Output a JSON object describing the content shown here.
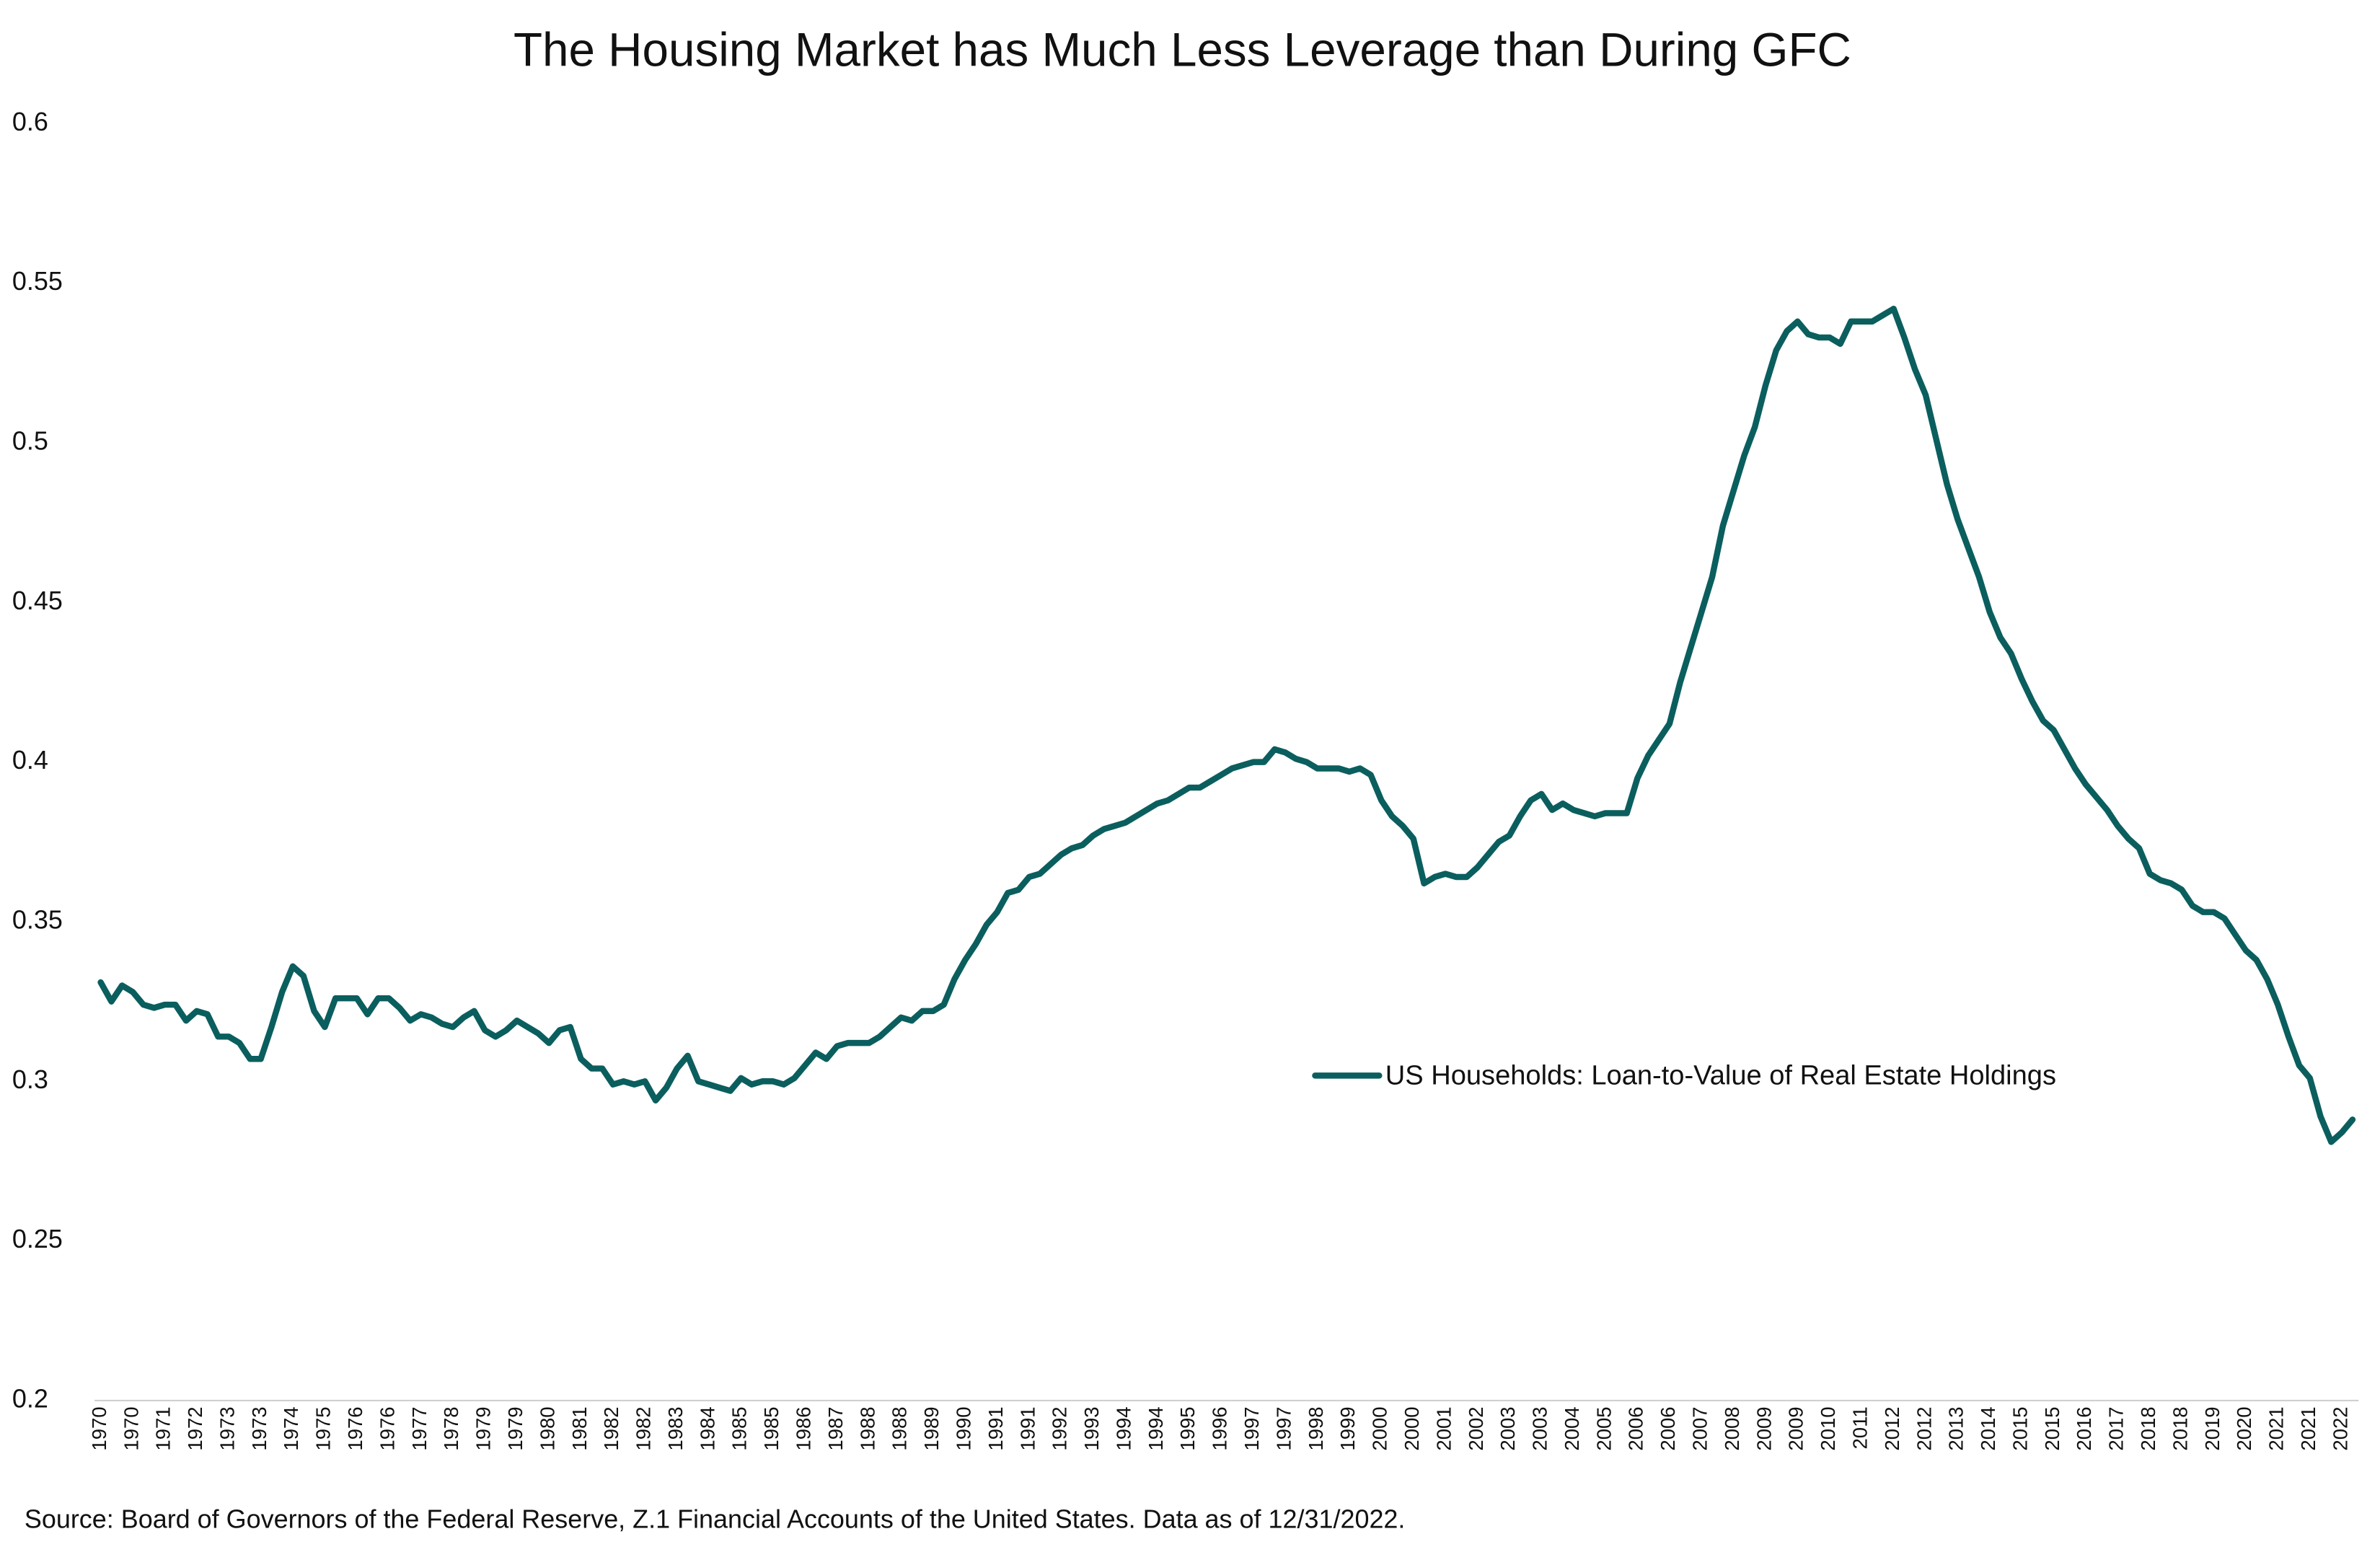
{
  "chart_data": {
    "type": "line",
    "title": "The Housing Market has Much Less Leverage than During GFC",
    "source": "Source: Board of Governors of the Federal Reserve, Z.1 Financial Accounts of the United States. Data as of 12/31/2022.",
    "categories": [
      "1970",
      null,
      null,
      "1970",
      null,
      null,
      "1971",
      null,
      null,
      "1972",
      null,
      null,
      "1973",
      null,
      null,
      "1973",
      null,
      null,
      "1974",
      null,
      null,
      "1975",
      null,
      null,
      "1976",
      null,
      null,
      "1976",
      null,
      null,
      "1977",
      null,
      null,
      "1978",
      null,
      null,
      "1979",
      null,
      null,
      "1979",
      null,
      null,
      "1980",
      null,
      null,
      "1981",
      null,
      null,
      "1982",
      null,
      null,
      "1982",
      null,
      null,
      "1983",
      null,
      null,
      "1984",
      null,
      null,
      "1985",
      null,
      null,
      "1985",
      null,
      null,
      "1986",
      null,
      null,
      "1987",
      null,
      null,
      "1988",
      null,
      null,
      "1988",
      null,
      null,
      "1989",
      null,
      null,
      "1990",
      null,
      null,
      "1991",
      null,
      null,
      "1991",
      null,
      null,
      "1992",
      null,
      null,
      "1993",
      null,
      null,
      "1994",
      null,
      null,
      "1994",
      null,
      null,
      "1995",
      null,
      null,
      "1996",
      null,
      null,
      "1997",
      null,
      null,
      "1997",
      null,
      null,
      "1998",
      null,
      null,
      "1999",
      null,
      null,
      "2000",
      null,
      null,
      "2000",
      null,
      null,
      "2001",
      null,
      null,
      "2002",
      null,
      null,
      "2003",
      null,
      null,
      "2003",
      null,
      null,
      "2004",
      null,
      null,
      "2005",
      null,
      null,
      "2006",
      null,
      null,
      "2006",
      null,
      null,
      "2007",
      null,
      null,
      "2008",
      null,
      null,
      "2009",
      null,
      null,
      "2009",
      null,
      null,
      "2010",
      null,
      null,
      "2011",
      null,
      null,
      "2012",
      null,
      null,
      "2012",
      null,
      null,
      "2013",
      null,
      null,
      "2014",
      null,
      null,
      "2015",
      null,
      null,
      "2015",
      null,
      null,
      "2016",
      null,
      null,
      "2017",
      null,
      null,
      "2018",
      null,
      null,
      "2018",
      null,
      null,
      "2019",
      null,
      null,
      "2020",
      null,
      null,
      "2021",
      null,
      null,
      "2021",
      null,
      null,
      "2022",
      null
    ],
    "series": [
      {
        "name": "US Households: Loan-to-Value of Real Estate Holdings",
        "color": "#0b5e5e",
        "values": [
          0.331,
          0.325,
          0.33,
          0.328,
          0.324,
          0.323,
          0.324,
          0.324,
          0.319,
          0.322,
          0.321,
          0.314,
          0.314,
          0.312,
          0.307,
          0.307,
          0.317,
          0.328,
          0.336,
          0.333,
          0.322,
          0.317,
          0.326,
          0.326,
          0.326,
          0.321,
          0.326,
          0.326,
          0.323,
          0.319,
          0.321,
          0.32,
          0.318,
          0.317,
          0.32,
          0.322,
          0.316,
          0.314,
          0.316,
          0.319,
          0.317,
          0.315,
          0.312,
          0.316,
          0.317,
          0.307,
          0.304,
          0.304,
          0.299,
          0.3,
          0.299,
          0.3,
          0.294,
          0.298,
          0.304,
          0.308,
          0.3,
          0.299,
          0.298,
          0.297,
          0.301,
          0.299,
          0.3,
          0.3,
          0.299,
          0.301,
          0.305,
          0.309,
          0.307,
          0.311,
          0.312,
          0.312,
          0.312,
          0.314,
          0.317,
          0.32,
          0.319,
          0.322,
          0.322,
          0.324,
          0.332,
          0.338,
          0.343,
          0.349,
          0.353,
          0.359,
          0.36,
          0.364,
          0.365,
          0.368,
          0.371,
          0.373,
          0.374,
          0.377,
          0.379,
          0.38,
          0.381,
          0.383,
          0.385,
          0.387,
          0.388,
          0.39,
          0.392,
          0.392,
          0.394,
          0.396,
          0.398,
          0.399,
          0.4,
          0.4,
          0.404,
          0.403,
          0.401,
          0.4,
          0.398,
          0.398,
          0.398,
          0.397,
          0.398,
          0.396,
          0.388,
          0.383,
          0.38,
          0.376,
          0.362,
          0.364,
          0.365,
          0.364,
          0.364,
          0.367,
          0.371,
          0.375,
          0.377,
          0.383,
          0.388,
          0.39,
          0.385,
          0.387,
          0.385,
          0.384,
          0.383,
          0.384,
          0.384,
          0.384,
          0.395,
          0.402,
          0.407,
          0.412,
          0.425,
          0.436,
          0.447,
          0.458,
          0.474,
          0.485,
          0.496,
          0.505,
          0.518,
          0.529,
          0.535,
          0.538,
          0.534,
          0.533,
          0.533,
          0.531,
          0.538,
          0.538,
          0.538,
          0.54,
          0.542,
          0.533,
          0.523,
          0.515,
          0.501,
          0.487,
          0.476,
          0.467,
          0.458,
          0.447,
          0.439,
          0.434,
          0.426,
          0.419,
          0.413,
          0.41,
          0.404,
          0.398,
          0.393,
          0.389,
          0.385,
          0.38,
          0.376,
          0.373,
          0.365,
          0.363,
          0.362,
          0.36,
          0.355,
          0.353,
          0.353,
          0.351,
          0.346,
          0.341,
          0.338,
          0.332,
          0.324,
          0.314,
          0.305,
          0.301,
          0.289,
          0.281,
          0.284,
          0.288
        ]
      }
    ],
    "ylim": [
      0.2,
      0.6
    ],
    "yticks": [
      0.2,
      0.25,
      0.3,
      0.35,
      0.4,
      0.45,
      0.5,
      0.55,
      0.6
    ],
    "grid": false,
    "legend": "right"
  }
}
